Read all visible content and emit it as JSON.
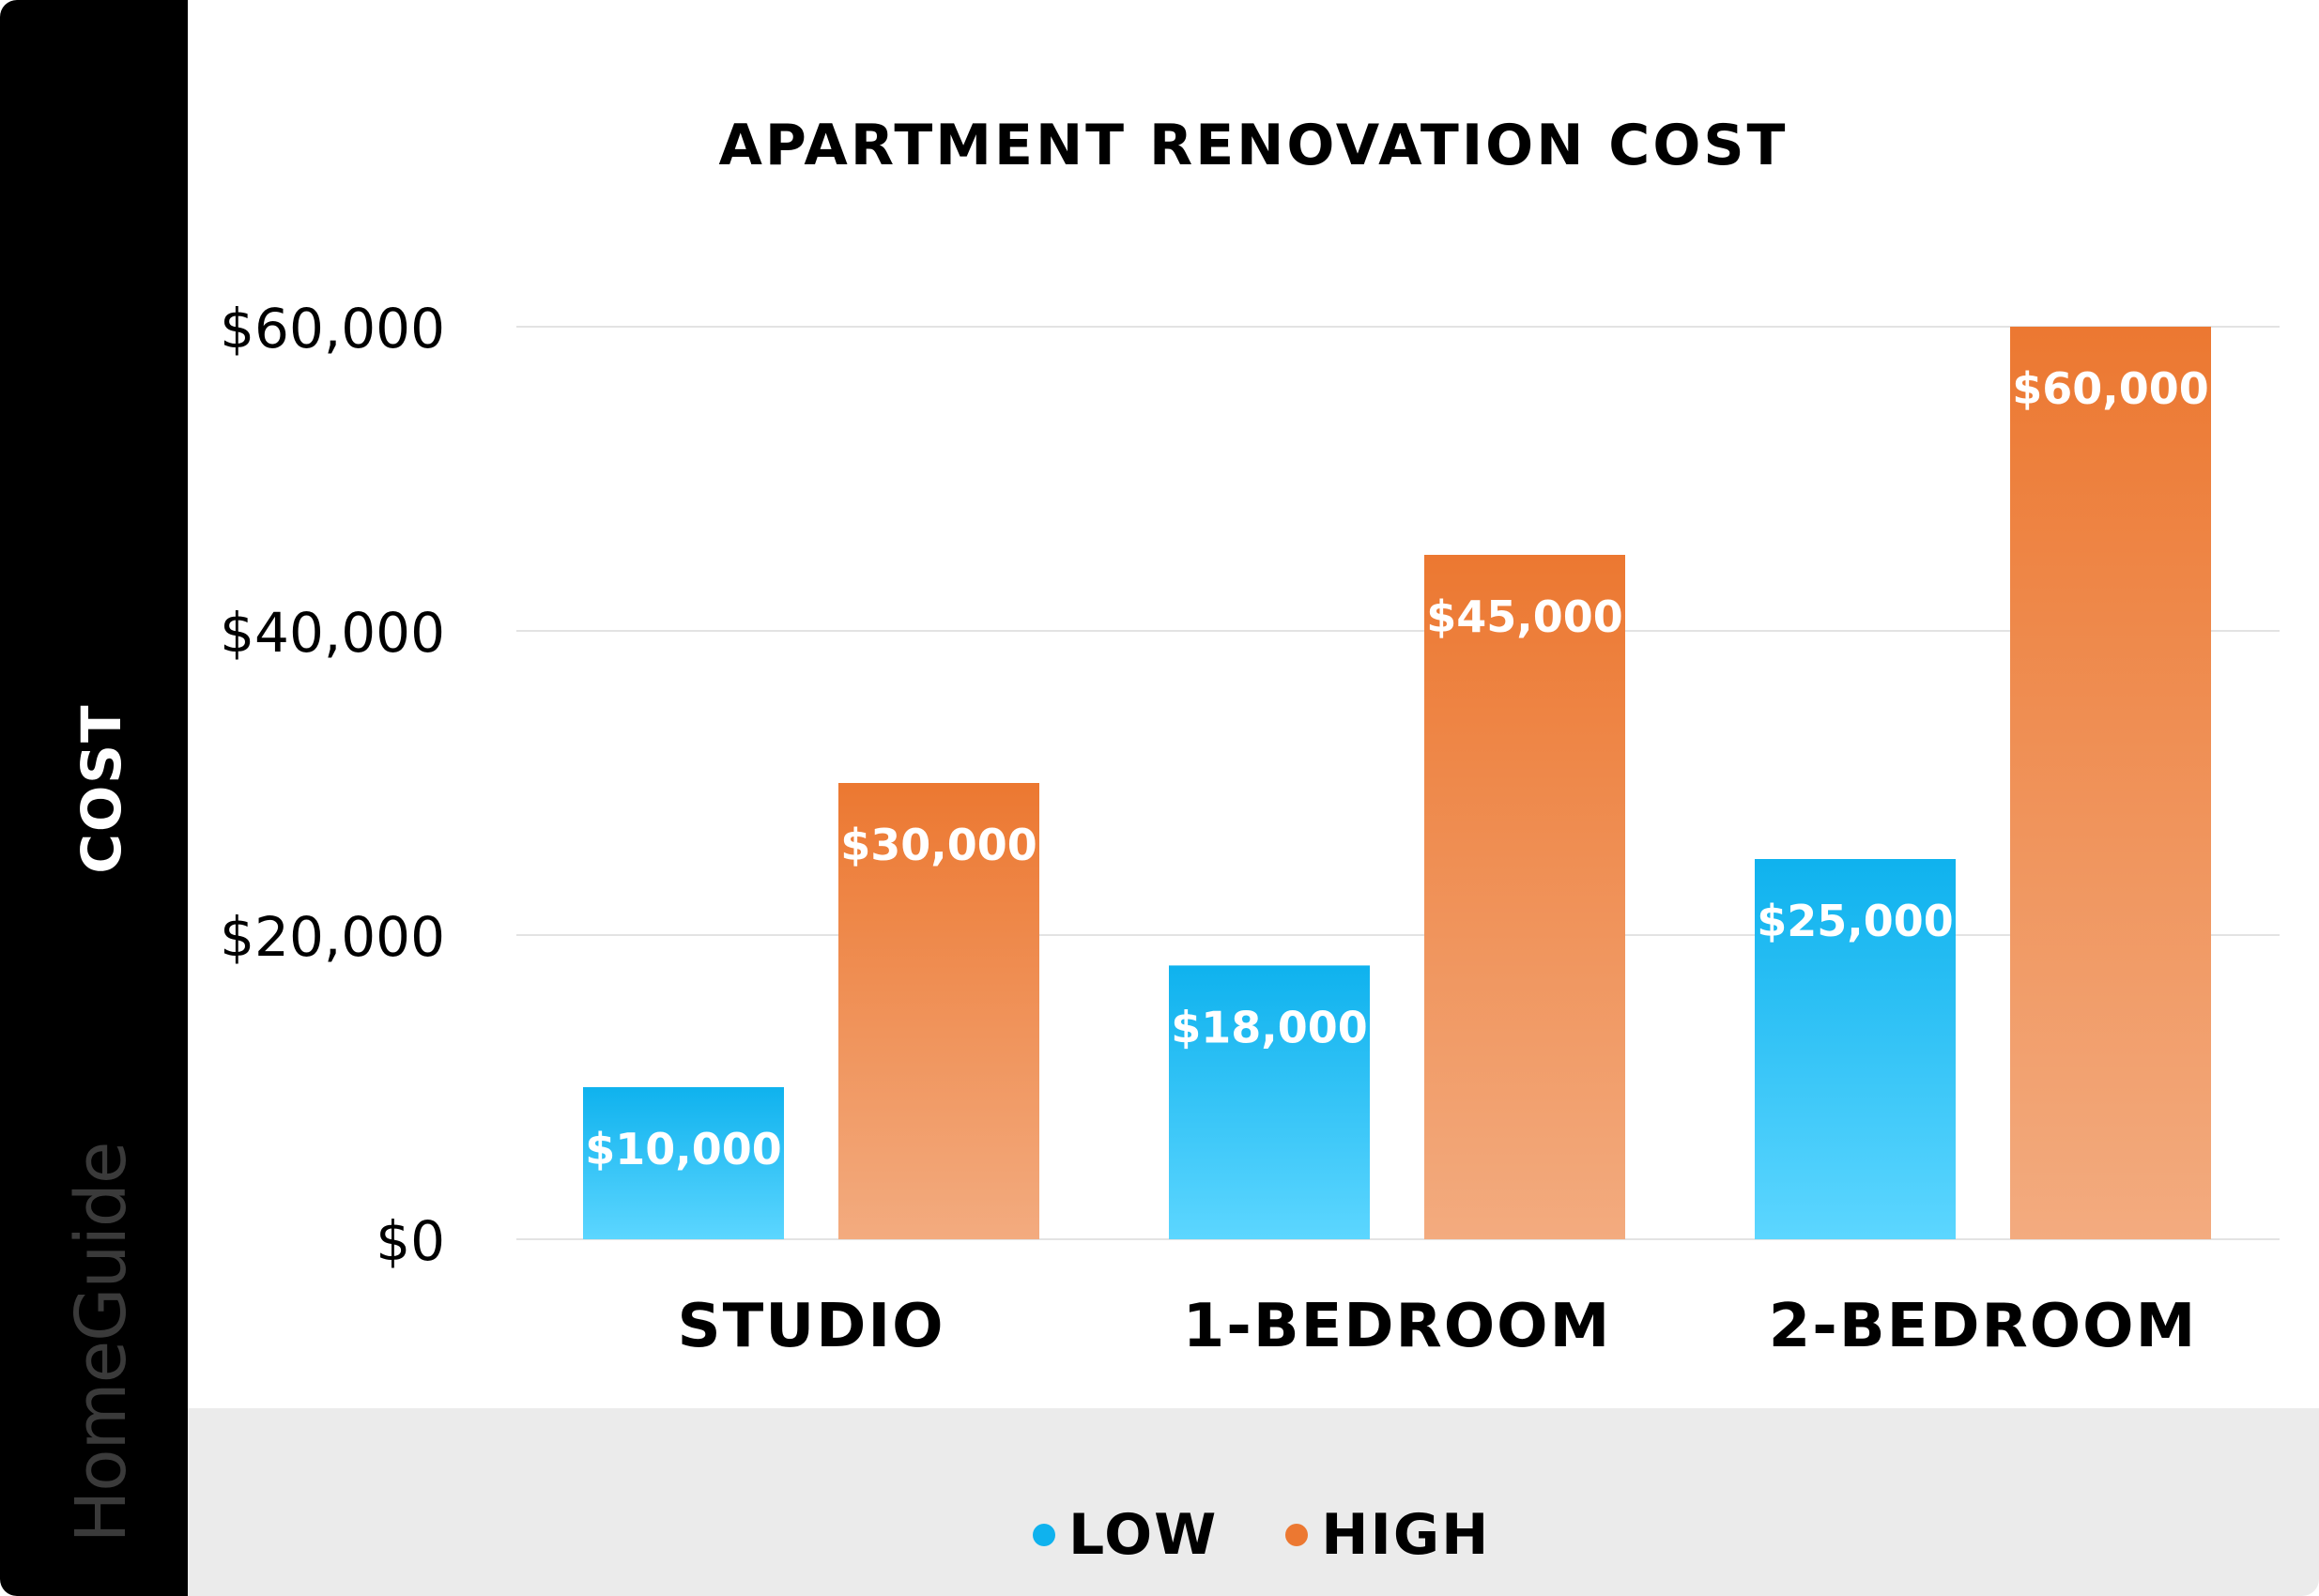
{
  "side_label": "COST",
  "brand": "HomeGuide",
  "colors": {
    "low_top": "#0fb2ee",
    "low_bottom": "#5cd6ff",
    "high_top": "#ec7831",
    "high_bottom": "#f3ab7f",
    "grid": "#e3e3e3"
  },
  "chart_data": {
    "type": "bar",
    "title": "APARTMENT RENOVATION COST",
    "xlabel": "",
    "ylabel": "COST",
    "categories": [
      "STUDIO",
      "1-BEDROOM",
      "2-BEDROOM"
    ],
    "series": [
      {
        "name": "LOW",
        "values": [
          10000,
          18000,
          25000
        ],
        "labels": [
          "$10,000",
          "$18,000",
          "$25,000"
        ],
        "color": "#0fb2ee"
      },
      {
        "name": "HIGH",
        "values": [
          30000,
          45000,
          60000
        ],
        "labels": [
          "$30,000",
          "$45,000",
          "$60,000"
        ],
        "color": "#ec7831"
      }
    ],
    "ylim": [
      0,
      60000
    ],
    "yticks": [
      0,
      20000,
      40000,
      60000
    ],
    "ytick_labels": [
      "$0",
      "$20,000",
      "$40,000",
      "$60,000"
    ],
    "grid": true,
    "legend_position": "bottom"
  }
}
